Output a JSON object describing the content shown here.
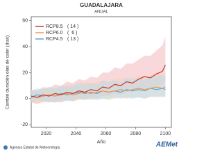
{
  "chart_data": {
    "type": "line",
    "title": "GUADALAJARA",
    "subtitle": "ANUAL",
    "x_label": "Año",
    "y_label": "Cambio duración olas de calor (días)",
    "x": [
      2010,
      2014,
      2018,
      2022,
      2026,
      2030,
      2034,
      2038,
      2042,
      2046,
      2050,
      2054,
      2058,
      2062,
      2066,
      2070,
      2074,
      2078,
      2082,
      2086,
      2090,
      2094,
      2098,
      2100
    ],
    "xlim": [
      2010,
      2104
    ],
    "xticks": [
      2020,
      2040,
      2060,
      2080,
      2100
    ],
    "ylim": [
      -22,
      63
    ],
    "yticks": [
      -20,
      0,
      20,
      40,
      60
    ],
    "series": [
      {
        "name": "RCP8.5",
        "models": "( 14 )",
        "color": "#c8372d",
        "band_color": "#f2b8bd",
        "values": [
          2,
          1,
          3,
          2,
          4,
          3,
          5,
          4,
          6,
          5,
          7,
          6,
          9,
          8,
          11,
          10,
          13,
          12,
          15,
          17,
          16,
          19,
          21,
          26
        ],
        "lower": [
          -3,
          -4,
          -2,
          -3,
          -2,
          -3,
          -1,
          -2,
          0,
          -1,
          1,
          0,
          2,
          2,
          4,
          3,
          5,
          5,
          7,
          8,
          8,
          10,
          11,
          14
        ],
        "upper": [
          7,
          6,
          9,
          8,
          11,
          10,
          13,
          12,
          15,
          14,
          17,
          16,
          20,
          20,
          24,
          23,
          27,
          27,
          30,
          33,
          33,
          37,
          41,
          48
        ]
      },
      {
        "name": "RCP6.0",
        "models": "(  6 )",
        "color": "#e89a55",
        "band_color": "#f8d4b0",
        "values": [
          2,
          1,
          2,
          3,
          2,
          3,
          4,
          3,
          4,
          5,
          4,
          5,
          6,
          5,
          6,
          7,
          6,
          7,
          8,
          7,
          8,
          9,
          8,
          9
        ],
        "lower": [
          -2,
          -4,
          -3,
          -2,
          -3,
          -2,
          -1,
          -2,
          -1,
          0,
          -1,
          0,
          0,
          -1,
          0,
          1,
          0,
          1,
          1,
          0,
          1,
          2,
          1,
          2
        ],
        "upper": [
          7,
          6,
          8,
          9,
          8,
          9,
          11,
          10,
          11,
          13,
          12,
          13,
          14,
          13,
          15,
          16,
          15,
          16,
          18,
          17,
          18,
          20,
          19,
          20
        ]
      },
      {
        "name": "RCP4.5",
        "models": "( 13 )",
        "color": "#5ea6d4",
        "band_color": "#b9dcef",
        "values": [
          1,
          3,
          2,
          3,
          2,
          4,
          3,
          4,
          5,
          4,
          5,
          4,
          6,
          5,
          6,
          5,
          7,
          6,
          7,
          6,
          8,
          7,
          8,
          7
        ],
        "lower": [
          -3,
          -1,
          -2,
          -2,
          -3,
          -1,
          -2,
          -1,
          0,
          -1,
          0,
          -1,
          0,
          0,
          1,
          0,
          1,
          0,
          1,
          0,
          2,
          1,
          2,
          1
        ],
        "upper": [
          6,
          8,
          7,
          9,
          8,
          10,
          9,
          10,
          12,
          11,
          12,
          11,
          14,
          13,
          14,
          13,
          16,
          15,
          16,
          15,
          18,
          17,
          18,
          17
        ]
      }
    ],
    "footer": "Agencia Estatal de Meteorología",
    "logo": "AEMet"
  }
}
